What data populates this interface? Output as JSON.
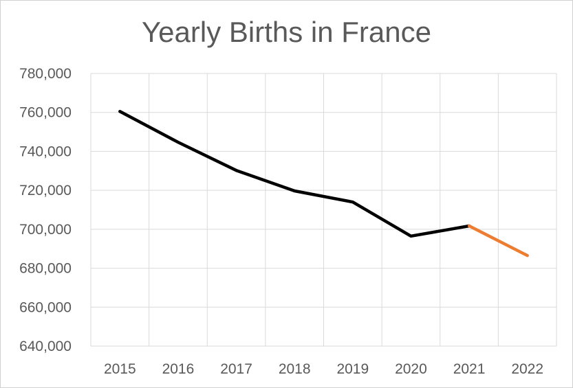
{
  "chart_data": {
    "type": "line",
    "title": "Yearly Births in France",
    "xlabel": "",
    "ylabel": "",
    "categories": [
      "2015",
      "2016",
      "2017",
      "2018",
      "2019",
      "2020",
      "2021",
      "2022"
    ],
    "ylim": [
      640000,
      780000
    ],
    "yticks": [
      640000,
      660000,
      680000,
      700000,
      720000,
      740000,
      760000,
      780000
    ],
    "ytick_labels": [
      "640,000",
      "660,000",
      "680,000",
      "700,000",
      "720,000",
      "740,000",
      "760,000",
      "780,000"
    ],
    "grid": true,
    "legend": "none",
    "series": [
      {
        "values": [
          760500,
          744700,
          730200,
          719700,
          714000,
          696500,
          701700,
          null
        ],
        "color": "#000000"
      },
      {
        "values": [
          null,
          null,
          null,
          null,
          null,
          null,
          701700,
          686500
        ],
        "color": "#ED7D31"
      }
    ]
  }
}
